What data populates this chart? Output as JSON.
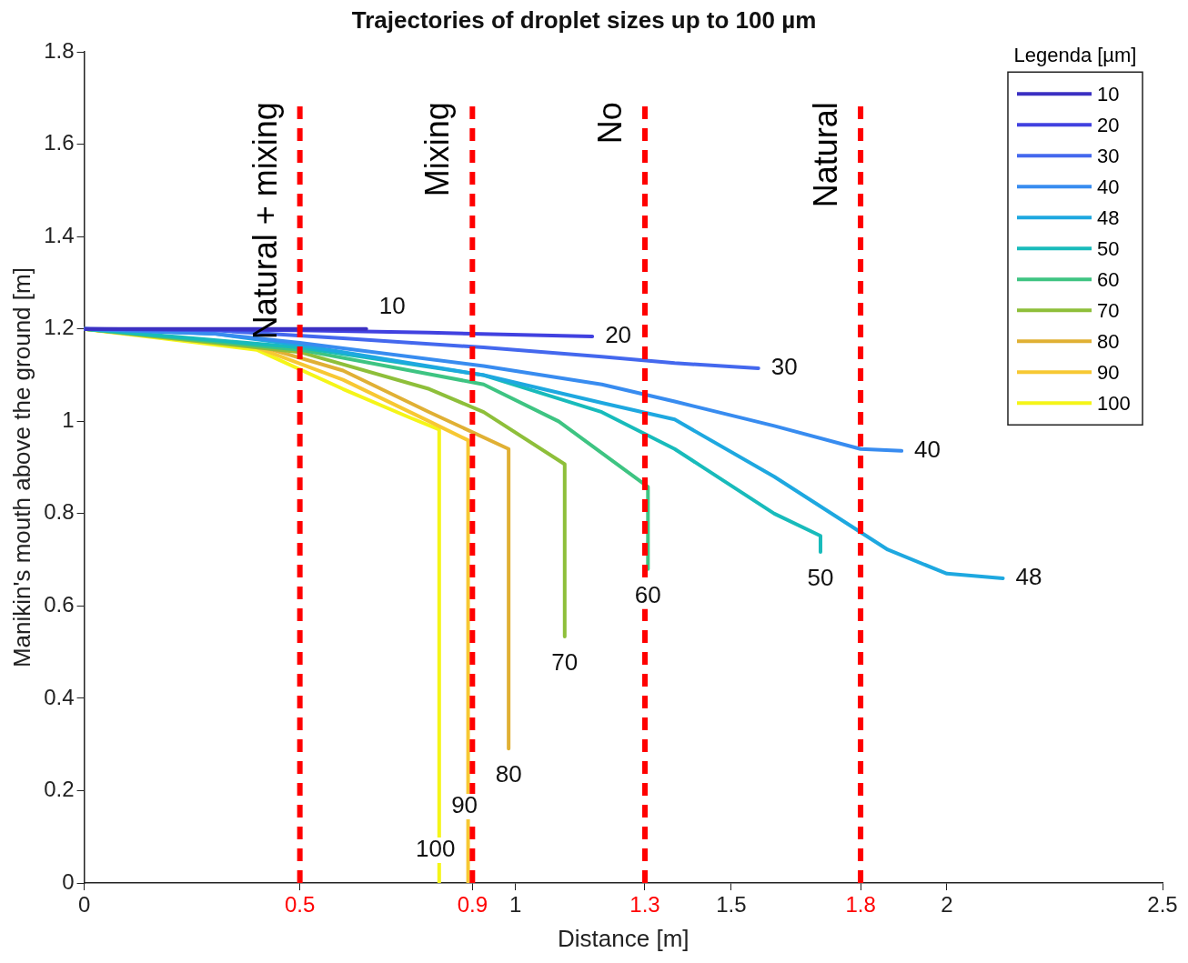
{
  "chart_data": {
    "type": "line",
    "title": "Trajectories of droplet sizes up to 100 µm",
    "xlabel": "Distance [m]",
    "ylabel": "Manikin's mouth above the ground [m]",
    "legend_title": "Legenda [µm]",
    "legend": "top right",
    "grid": false,
    "marker": "none",
    "line_style": "solid",
    "xlim": [
      0,
      2.5
    ],
    "xticks": [
      0,
      0.5,
      0.9,
      1,
      1.3,
      1.5,
      1.8,
      2,
      2.5
    ],
    "ylim": [
      0,
      1.8
    ],
    "yticks": [
      0,
      0.2,
      0.4,
      0.6,
      0.8,
      1,
      1.2,
      1.4,
      1.6,
      1.8
    ],
    "series": [
      {
        "name": "10",
        "color": "#3b30c2",
        "x": [
          0,
          0.3,
          0.654
        ],
        "values": [
          1.2,
          1.2,
          1.2
        ]
      },
      {
        "name": "20",
        "color": "#4141e0",
        "x": [
          0,
          0.5,
          0.8,
          1.178
        ],
        "values": [
          1.2,
          1.197,
          1.192,
          1.184
        ]
      },
      {
        "name": "30",
        "color": "#4468ee",
        "x": [
          0,
          0.3,
          0.6,
          0.926,
          1.2,
          1.369,
          1.563
        ],
        "values": [
          1.2,
          1.197,
          1.18,
          1.16,
          1.14,
          1.126,
          1.115
        ]
      },
      {
        "name": "40",
        "color": "#388cf0",
        "x": [
          0,
          0.3,
          0.5,
          0.926,
          1.2,
          1.369,
          1.6,
          1.8,
          1.895
        ],
        "values": [
          1.2,
          1.19,
          1.17,
          1.12,
          1.08,
          1.043,
          0.99,
          0.94,
          0.936
        ]
      },
      {
        "name": "48",
        "color": "#1ea8e0",
        "x": [
          0,
          0.3,
          0.5,
          0.926,
          1.2,
          1.369,
          1.6,
          1.863,
          2.0,
          2.13
        ],
        "values": [
          1.2,
          1.19,
          1.165,
          1.1,
          1.04,
          1.004,
          0.88,
          0.722,
          0.67,
          0.66
        ]
      },
      {
        "name": "50",
        "color": "#18bbbb",
        "x": [
          0,
          0.5,
          0.926,
          1.2,
          1.369,
          1.6,
          1.707,
          1.707
        ],
        "values": [
          1.2,
          1.16,
          1.1,
          1.02,
          0.94,
          0.8,
          0.752,
          0.717
        ]
      },
      {
        "name": "60",
        "color": "#3ec482",
        "x": [
          0,
          0.5,
          0.926,
          1.1,
          1.307,
          1.307
        ],
        "values": [
          1.2,
          1.155,
          1.08,
          1.0,
          0.858,
          0.68
        ]
      },
      {
        "name": "70",
        "color": "#8ebf3a",
        "x": [
          0,
          0.5,
          0.8,
          0.926,
          1.114,
          1.114
        ],
        "values": [
          1.2,
          1.15,
          1.07,
          1.02,
          0.907,
          0.534
        ]
      },
      {
        "name": "80",
        "color": "#e0b034",
        "x": [
          0,
          0.4,
          0.6,
          0.8,
          0.984,
          0.984
        ],
        "values": [
          1.2,
          1.165,
          1.11,
          1.02,
          0.94,
          0.291
        ]
      },
      {
        "name": "90",
        "color": "#f7c833",
        "x": [
          0,
          0.4,
          0.6,
          0.8,
          0.89,
          0.89
        ],
        "values": [
          1.2,
          1.16,
          1.09,
          1.0,
          0.959,
          0
        ]
      },
      {
        "name": "100",
        "color": "#f5f518",
        "x": [
          0,
          0.4,
          0.6,
          0.75,
          0.823,
          0.823
        ],
        "values": [
          1.2,
          1.155,
          1.07,
          1.01,
          0.982,
          0
        ]
      }
    ],
    "ref_lines": [
      {
        "axis": "x",
        "value": 0.5,
        "label": "Natural + mixing",
        "color": "#ff0000",
        "line_style": "dashed"
      },
      {
        "axis": "x",
        "value": 0.9,
        "label": "Mixing",
        "color": "#ff0000",
        "line_style": "dashed"
      },
      {
        "axis": "x",
        "value": 1.3,
        "label": "No",
        "color": "#ff0000",
        "line_style": "dashed"
      },
      {
        "axis": "x",
        "value": 1.8,
        "label": "Natural",
        "color": "#ff0000",
        "line_style": "dashed"
      }
    ]
  }
}
